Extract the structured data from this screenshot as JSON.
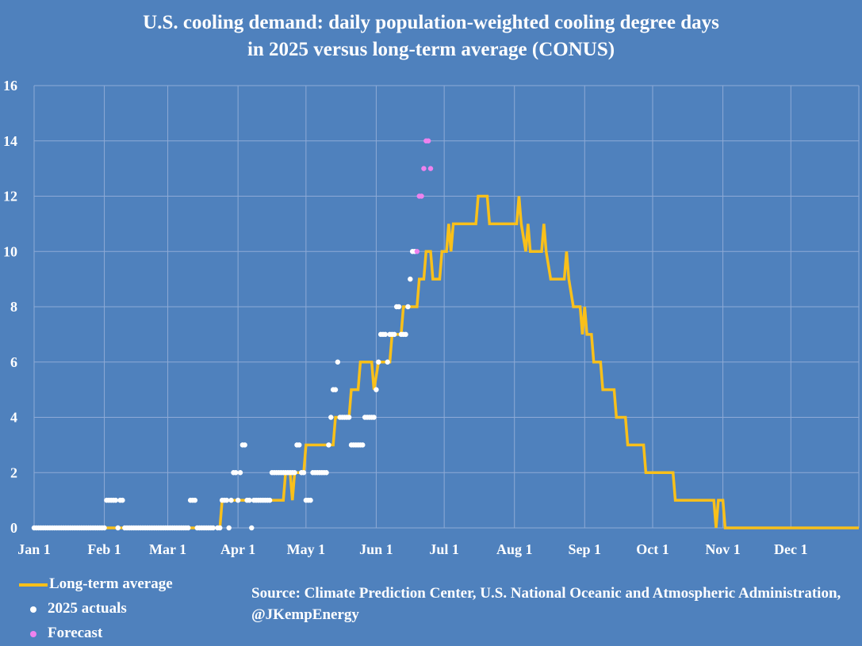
{
  "title_line1": "U.S. cooling demand: daily population-weighted cooling degree days",
  "title_line2": "in 2025 versus long-term average (CONUS)",
  "source_text": "Source: Climate Prediction Center, U.S. National Oceanic and Atmospheric Administration, @JKempEnergy",
  "legend": {
    "long_term": "Long-term average",
    "actuals": "2025 actuals",
    "forecast": "Forecast"
  },
  "colors": {
    "background": "#4f81bd",
    "grid": "#8eaad6",
    "long_term": "#f9c01a",
    "actuals": "#ffffff",
    "forecast": "#ee82ee"
  },
  "chart_data": {
    "type": "line",
    "title": "U.S. cooling demand: daily population-weighted cooling degree days in 2025 versus long-term average (CONUS)",
    "xlabel": "",
    "ylabel": "",
    "x_range_days": [
      1,
      365
    ],
    "ylim": [
      0,
      16
    ],
    "y_ticks": [
      0,
      2,
      4,
      6,
      8,
      10,
      12,
      14,
      16
    ],
    "x_ticks": [
      {
        "label": "Jan 1",
        "day": 1
      },
      {
        "label": "Feb 1",
        "day": 32
      },
      {
        "label": "Mar 1",
        "day": 60
      },
      {
        "label": "Apr 1",
        "day": 91
      },
      {
        "label": "May 1",
        "day": 121
      },
      {
        "label": "Jun 1",
        "day": 152
      },
      {
        "label": "Jul 1",
        "day": 182
      },
      {
        "label": "Aug 1",
        "day": 213
      },
      {
        "label": "Sep 1",
        "day": 244
      },
      {
        "label": "Oct 1",
        "day": 274
      },
      {
        "label": "Nov 1",
        "day": 305
      },
      {
        "label": "Dec 1",
        "day": 335
      }
    ],
    "long_term_average": [
      [
        1,
        0
      ],
      [
        83,
        0
      ],
      [
        84,
        1
      ],
      [
        100,
        1
      ],
      [
        111,
        1
      ],
      [
        112,
        2
      ],
      [
        114,
        2
      ],
      [
        115,
        1
      ],
      [
        116,
        2
      ],
      [
        120,
        2
      ],
      [
        121,
        3
      ],
      [
        133,
        3
      ],
      [
        134,
        4
      ],
      [
        140,
        4
      ],
      [
        141,
        5
      ],
      [
        144,
        5
      ],
      [
        145,
        6
      ],
      [
        150,
        6
      ],
      [
        151,
        5
      ],
      [
        153,
        6
      ],
      [
        158,
        6
      ],
      [
        159,
        7
      ],
      [
        163,
        7
      ],
      [
        164,
        8
      ],
      [
        170,
        8
      ],
      [
        171,
        9
      ],
      [
        173,
        9
      ],
      [
        174,
        10
      ],
      [
        176,
        10
      ],
      [
        177,
        9
      ],
      [
        180,
        9
      ],
      [
        181,
        10
      ],
      [
        183,
        10
      ],
      [
        184,
        11
      ],
      [
        185,
        10
      ],
      [
        186,
        11
      ],
      [
        196,
        11
      ],
      [
        197,
        12
      ],
      [
        201,
        12
      ],
      [
        202,
        11
      ],
      [
        214,
        11
      ],
      [
        215,
        12
      ],
      [
        216,
        11
      ],
      [
        218,
        10
      ],
      [
        219,
        11
      ],
      [
        220,
        10
      ],
      [
        225,
        10
      ],
      [
        226,
        11
      ],
      [
        227,
        10
      ],
      [
        229,
        9
      ],
      [
        235,
        9
      ],
      [
        236,
        10
      ],
      [
        237,
        9
      ],
      [
        239,
        8
      ],
      [
        242,
        8
      ],
      [
        243,
        7
      ],
      [
        244,
        8
      ],
      [
        245,
        7
      ],
      [
        247,
        7
      ],
      [
        248,
        6
      ],
      [
        251,
        6
      ],
      [
        252,
        5
      ],
      [
        257,
        5
      ],
      [
        258,
        4
      ],
      [
        262,
        4
      ],
      [
        263,
        3
      ],
      [
        270,
        3
      ],
      [
        271,
        2
      ],
      [
        283,
        2
      ],
      [
        284,
        1
      ],
      [
        301,
        1
      ],
      [
        302,
        0
      ],
      [
        303,
        1
      ],
      [
        305,
        1
      ],
      [
        306,
        0
      ],
      [
        365,
        0
      ]
    ],
    "series": [
      {
        "name": "2025 actuals",
        "points": [
          [
            1,
            0
          ],
          [
            2,
            0
          ],
          [
            3,
            0
          ],
          [
            4,
            0
          ],
          [
            5,
            0
          ],
          [
            6,
            0
          ],
          [
            7,
            0
          ],
          [
            8,
            0
          ],
          [
            9,
            0
          ],
          [
            10,
            0
          ],
          [
            11,
            0
          ],
          [
            12,
            0
          ],
          [
            13,
            0
          ],
          [
            14,
            0
          ],
          [
            15,
            0
          ],
          [
            16,
            0
          ],
          [
            17,
            0
          ],
          [
            18,
            0
          ],
          [
            19,
            0
          ],
          [
            20,
            0
          ],
          [
            21,
            0
          ],
          [
            22,
            0
          ],
          [
            23,
            0
          ],
          [
            24,
            0
          ],
          [
            25,
            0
          ],
          [
            26,
            0
          ],
          [
            27,
            0
          ],
          [
            28,
            0
          ],
          [
            29,
            0
          ],
          [
            30,
            0
          ],
          [
            31,
            0
          ],
          [
            32,
            0
          ],
          [
            33,
            1
          ],
          [
            34,
            1
          ],
          [
            35,
            1
          ],
          [
            36,
            1
          ],
          [
            37,
            1
          ],
          [
            38,
            0
          ],
          [
            39,
            1
          ],
          [
            40,
            1
          ],
          [
            41,
            0
          ],
          [
            42,
            0
          ],
          [
            43,
            0
          ],
          [
            44,
            0
          ],
          [
            45,
            0
          ],
          [
            46,
            0
          ],
          [
            47,
            0
          ],
          [
            48,
            0
          ],
          [
            49,
            0
          ],
          [
            50,
            0
          ],
          [
            51,
            0
          ],
          [
            52,
            0
          ],
          [
            53,
            0
          ],
          [
            54,
            0
          ],
          [
            55,
            0
          ],
          [
            56,
            0
          ],
          [
            57,
            0
          ],
          [
            58,
            0
          ],
          [
            59,
            0
          ],
          [
            60,
            0
          ],
          [
            61,
            0
          ],
          [
            62,
            0
          ],
          [
            63,
            0
          ],
          [
            64,
            0
          ],
          [
            65,
            0
          ],
          [
            66,
            0
          ],
          [
            67,
            0
          ],
          [
            68,
            0
          ],
          [
            69,
            0
          ],
          [
            70,
            1
          ],
          [
            71,
            1
          ],
          [
            72,
            1
          ],
          [
            73,
            0
          ],
          [
            74,
            0
          ],
          [
            75,
            0
          ],
          [
            76,
            0
          ],
          [
            77,
            0
          ],
          [
            78,
            0
          ],
          [
            79,
            0
          ],
          [
            80,
            0
          ],
          [
            82,
            0
          ],
          [
            83,
            0
          ],
          [
            84,
            1
          ],
          [
            85,
            1
          ],
          [
            86,
            1
          ],
          [
            87,
            0
          ],
          [
            88,
            1
          ],
          [
            89,
            2
          ],
          [
            90,
            2
          ],
          [
            91,
            1
          ],
          [
            92,
            2
          ],
          [
            93,
            3
          ],
          [
            94,
            3
          ],
          [
            95,
            1
          ],
          [
            96,
            1
          ],
          [
            97,
            0
          ],
          [
            98,
            1
          ],
          [
            99,
            1
          ],
          [
            100,
            1
          ],
          [
            101,
            1
          ],
          [
            102,
            1
          ],
          [
            103,
            1
          ],
          [
            104,
            1
          ],
          [
            105,
            1
          ],
          [
            106,
            2
          ],
          [
            107,
            2
          ],
          [
            108,
            2
          ],
          [
            109,
            2
          ],
          [
            110,
            2
          ],
          [
            111,
            2
          ],
          [
            112,
            2
          ],
          [
            113,
            2
          ],
          [
            114,
            2
          ],
          [
            115,
            2
          ],
          [
            116,
            2
          ],
          [
            117,
            3
          ],
          [
            118,
            3
          ],
          [
            119,
            2
          ],
          [
            120,
            2
          ],
          [
            121,
            1
          ],
          [
            122,
            1
          ],
          [
            123,
            1
          ],
          [
            124,
            2
          ],
          [
            125,
            2
          ],
          [
            126,
            2
          ],
          [
            127,
            2
          ],
          [
            128,
            2
          ],
          [
            129,
            2
          ],
          [
            130,
            2
          ],
          [
            131,
            3
          ],
          [
            132,
            4
          ],
          [
            133,
            5
          ],
          [
            134,
            5
          ],
          [
            135,
            6
          ],
          [
            136,
            4
          ],
          [
            137,
            4
          ],
          [
            138,
            4
          ],
          [
            139,
            4
          ],
          [
            140,
            4
          ],
          [
            141,
            3
          ],
          [
            142,
            3
          ],
          [
            143,
            3
          ],
          [
            144,
            3
          ],
          [
            145,
            3
          ],
          [
            146,
            3
          ],
          [
            147,
            4
          ],
          [
            148,
            4
          ],
          [
            149,
            4
          ],
          [
            150,
            4
          ],
          [
            151,
            4
          ],
          [
            152,
            5
          ],
          [
            153,
            6
          ],
          [
            154,
            7
          ],
          [
            155,
            7
          ],
          [
            156,
            7
          ],
          [
            157,
            6
          ],
          [
            158,
            7
          ],
          [
            159,
            7
          ],
          [
            160,
            7
          ],
          [
            161,
            8
          ],
          [
            162,
            8
          ],
          [
            163,
            7
          ],
          [
            164,
            7
          ],
          [
            165,
            7
          ],
          [
            166,
            8
          ],
          [
            167,
            9
          ],
          [
            168,
            10
          ],
          [
            169,
            10
          ]
        ]
      },
      {
        "name": "Forecast",
        "points": [
          [
            170,
            10
          ],
          [
            171,
            12
          ],
          [
            172,
            12
          ],
          [
            173,
            13
          ],
          [
            174,
            14
          ],
          [
            175,
            14
          ],
          [
            176,
            13
          ]
        ]
      }
    ]
  }
}
